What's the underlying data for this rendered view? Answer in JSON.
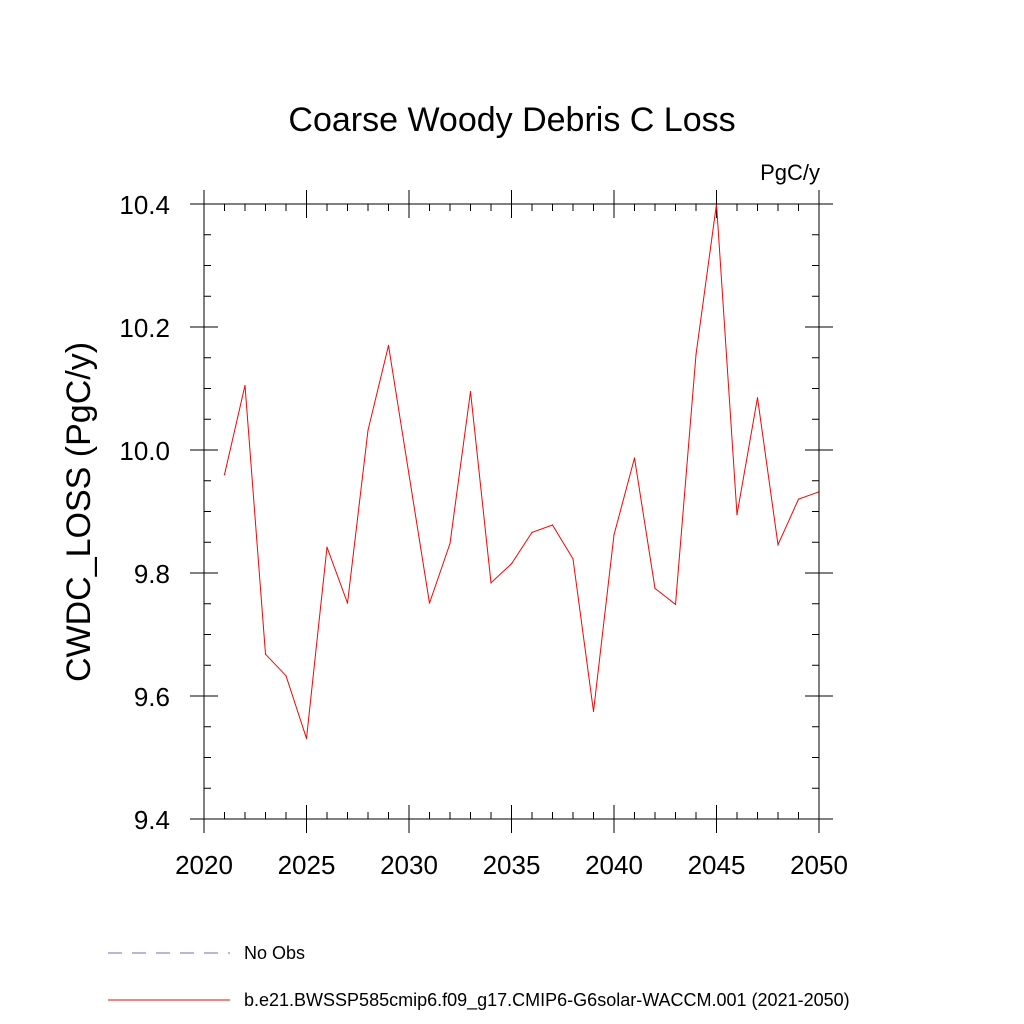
{
  "chart_data": {
    "type": "line",
    "title": "Coarse Woody Debris C Loss",
    "units": "PgC/y",
    "xlabel": "",
    "ylabel": "CWDC_LOSS  (PgC/y)",
    "xlim": [
      2020,
      2050
    ],
    "ylim": [
      9.4,
      10.4
    ],
    "x_ticks": [
      2020,
      2025,
      2030,
      2035,
      2040,
      2045,
      2050
    ],
    "x_tick_labels": [
      "2020",
      "2025",
      "2030",
      "2035",
      "2040",
      "2045",
      "2050"
    ],
    "y_ticks": [
      9.4,
      9.6,
      9.8,
      10.0,
      10.2,
      10.4
    ],
    "y_tick_labels": [
      "9.4",
      "9.6",
      "9.8",
      "10.0",
      "10.2",
      "10.4"
    ],
    "x_minor_step": 1,
    "y_minor_step": 0.05,
    "series": [
      {
        "name": "No Obs",
        "color": "#7b68b8",
        "dash": "dashed",
        "values": []
      },
      {
        "name": "b.e21.BWSSP585cmip6.f09_g17.CMIP6-G6solar-WACCM.001 (2021-2050)",
        "color": "#ff0000",
        "dash": "solid",
        "x": [
          2021,
          2022,
          2023,
          2024,
          2025,
          2026,
          2027,
          2028,
          2029,
          2030,
          2031,
          2032,
          2033,
          2034,
          2035,
          2036,
          2037,
          2038,
          2039,
          2040,
          2041,
          2042,
          2043,
          2044,
          2045,
          2046,
          2047,
          2048,
          2049,
          2050
        ],
        "values": [
          9.96,
          10.105,
          9.668,
          9.633,
          9.531,
          9.842,
          9.751,
          10.032,
          10.17,
          9.96,
          9.751,
          9.848,
          10.095,
          9.784,
          9.815,
          9.866,
          9.878,
          9.823,
          9.575,
          9.862,
          9.987,
          9.775,
          9.749,
          10.155,
          10.4,
          9.895,
          10.085,
          9.846,
          9.92,
          9.932
        ]
      }
    ],
    "legend": "bottom"
  }
}
